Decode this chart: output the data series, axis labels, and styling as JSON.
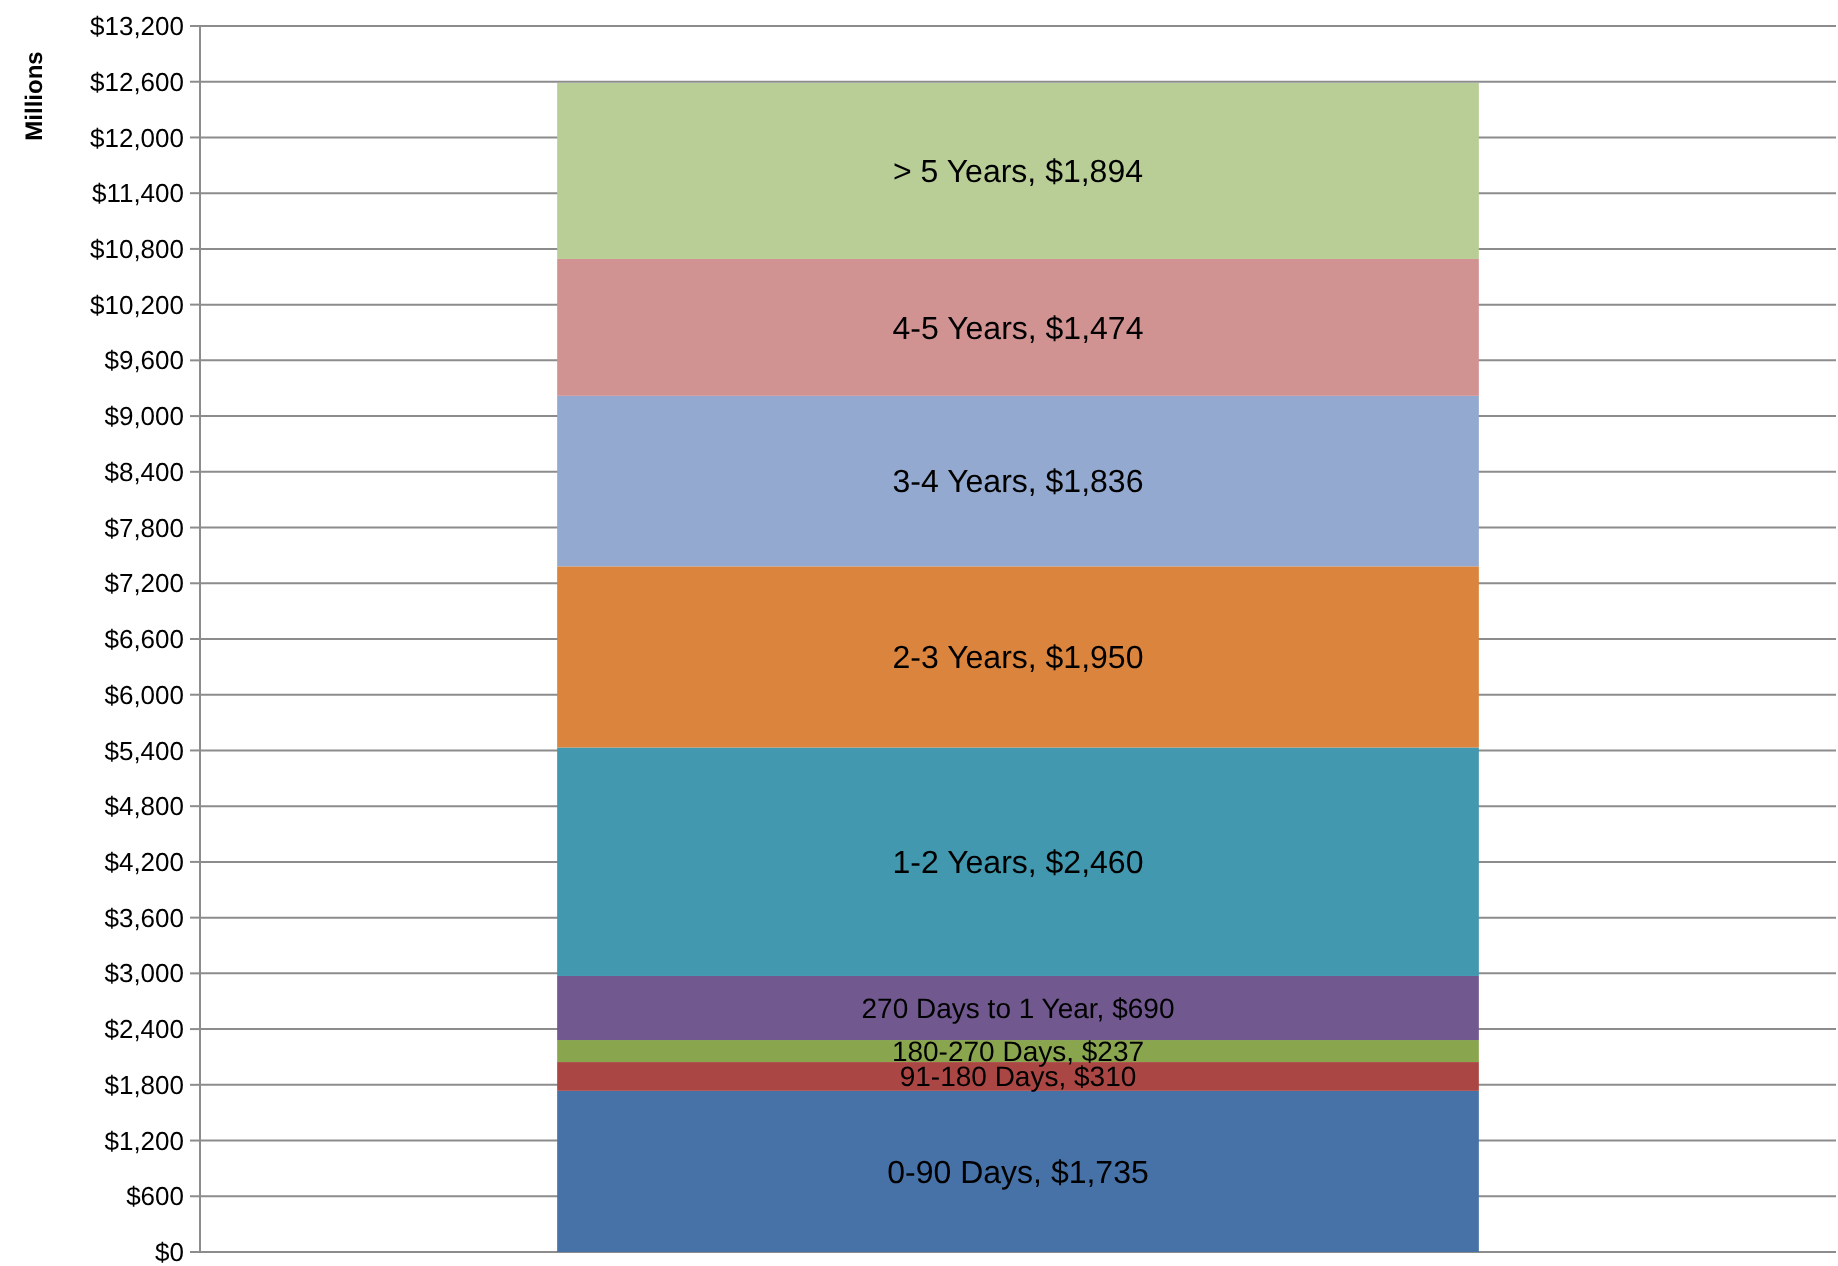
{
  "chart_data": {
    "type": "bar",
    "stacked": true,
    "ylabel": "Millions",
    "categories": [
      null
    ],
    "series": [
      {
        "color": "#4672a8",
        "values": [
          1735
        ],
        "value_labels": [
          "0-90 Days, $1,735"
        ]
      },
      {
        "color": "#aa4643",
        "values": [
          310
        ],
        "value_labels": [
          "91-180 Days, $310"
        ]
      },
      {
        "color": "#89a54e",
        "values": [
          237
        ],
        "value_labels": [
          "180-270 Days, $237"
        ]
      },
      {
        "color": "#71588f",
        "values": [
          690
        ],
        "value_labels": [
          "270 Days to 1 Year, $690"
        ]
      },
      {
        "color": "#4198af",
        "values": [
          2460
        ],
        "value_labels": [
          "1-2 Years, $2,460"
        ]
      },
      {
        "color": "#db843d",
        "values": [
          1950
        ],
        "value_labels": [
          "2-3 Years, $1,950"
        ]
      },
      {
        "color": "#93a9cf",
        "values": [
          1836
        ],
        "value_labels": [
          "3-4 Years, $1,836"
        ]
      },
      {
        "color": "#d19392",
        "values": [
          1474
        ],
        "value_labels": [
          "4-5 Years, $1,474"
        ]
      },
      {
        "color": "#b9cd96",
        "values": [
          1894
        ],
        "value_labels": [
          "> 5 Years, $1,894"
        ]
      }
    ],
    "ylim": [
      0,
      13200
    ],
    "yticks": [
      {
        "value": 0,
        "label": "$0"
      },
      {
        "value": 600,
        "label": "$600"
      },
      {
        "value": 1200,
        "label": "$1,200"
      },
      {
        "value": 1800,
        "label": "$1,800"
      },
      {
        "value": 2400,
        "label": "$2,400"
      },
      {
        "value": 3000,
        "label": "$3,000"
      },
      {
        "value": 3600,
        "label": "$3,600"
      },
      {
        "value": 4200,
        "label": "$4,200"
      },
      {
        "value": 4800,
        "label": "$4,800"
      },
      {
        "value": 5400,
        "label": "$5,400"
      },
      {
        "value": 6000,
        "label": "$6,000"
      },
      {
        "value": 6600,
        "label": "$6,600"
      },
      {
        "value": 7200,
        "label": "$7,200"
      },
      {
        "value": 7800,
        "label": "$7,800"
      },
      {
        "value": 8400,
        "label": "$8,400"
      },
      {
        "value": 9000,
        "label": "$9,000"
      },
      {
        "value": 9600,
        "label": "$9,600"
      },
      {
        "value": 10200,
        "label": "$10,200"
      },
      {
        "value": 10800,
        "label": "$10,800"
      },
      {
        "value": 11400,
        "label": "$11,400"
      },
      {
        "value": 12000,
        "label": "$12,000"
      },
      {
        "value": 12600,
        "label": "$12,600"
      },
      {
        "value": 13200,
        "label": "$13,200"
      }
    ],
    "grid": "y"
  }
}
